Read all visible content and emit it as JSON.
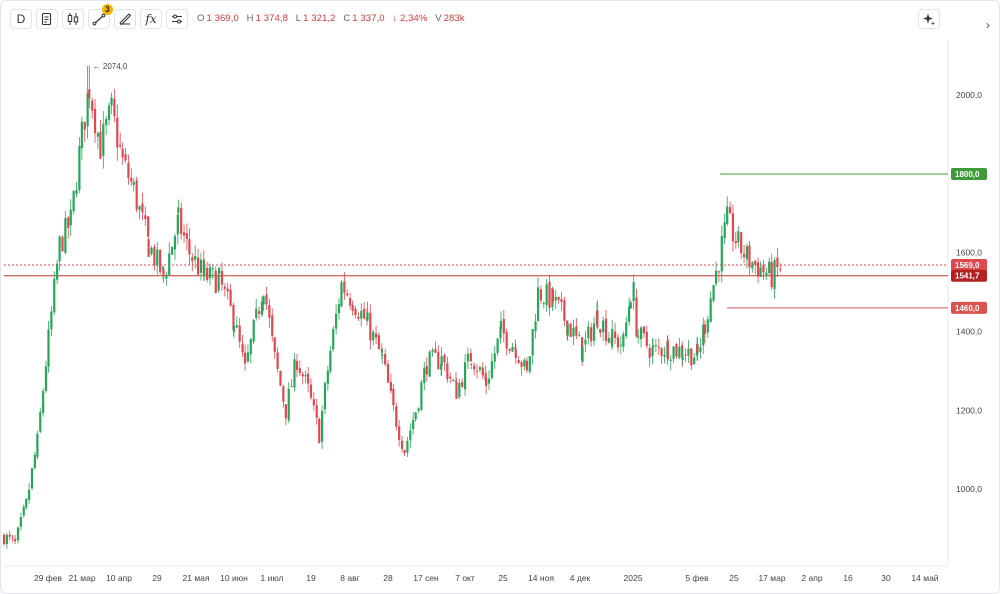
{
  "toolbar": {
    "interval_label": "D",
    "drawings_badge": "3",
    "fx_label": "fx"
  },
  "ohlc": {
    "o_key": "O",
    "o_val": "1 369,0",
    "h_key": "H",
    "h_val": "1 374,8",
    "l_key": "L",
    "l_val": "1 321,2",
    "c_key": "C",
    "c_val": "1 337,0",
    "change": "↓ 2,34%",
    "v_key": "V",
    "v_val": "283k"
  },
  "colors": {
    "up": "#26a65b",
    "down": "#e0484e",
    "green_line": "#3f9b3a",
    "red_line": "#d9534f",
    "current_line": "#c0392b"
  },
  "chart_data": {
    "type": "candlestick",
    "y_ticks": [
      "2000,0",
      "1800,0",
      "1600,0",
      "1400,0",
      "1200,0",
      "1000,0"
    ],
    "y_tick_values": [
      2000,
      1800,
      1600,
      1400,
      1200,
      1000
    ],
    "ylim": [
      820,
      2140
    ],
    "x_ticks": [
      "29 фев",
      "21 мар",
      "10 апр",
      "29",
      "21 мая",
      "10 июн",
      "1 июл",
      "19",
      "8 авг",
      "28",
      "17 сен",
      "7 окт",
      "25",
      "14 ноя",
      "4 дек",
      "2025",
      "5 фев",
      "25",
      "17 мар",
      "2 апр",
      "16",
      "30",
      "14 май"
    ],
    "peak_label": "← 2074,0",
    "peak_value": 2074,
    "levels": [
      {
        "label": "1800,0",
        "value": 1800,
        "kind": "green"
      },
      {
        "label": "1569,0",
        "value": 1569,
        "kind": "current"
      },
      {
        "label": "1541,7",
        "value": 1541.7,
        "kind": "dark"
      },
      {
        "label": "1460,0",
        "value": 1460,
        "kind": "red"
      }
    ],
    "path": [
      {
        "d": 0,
        "p": 880
      },
      {
        "d": 6,
        "p": 860
      },
      {
        "d": 12,
        "p": 960
      },
      {
        "d": 18,
        "p": 1120
      },
      {
        "d": 24,
        "p": 1380
      },
      {
        "d": 30,
        "p": 1620
      },
      {
        "d": 36,
        "p": 1680
      },
      {
        "d": 42,
        "p": 1900
      },
      {
        "d": 46,
        "p": 2020
      },
      {
        "d": 52,
        "p": 1870
      },
      {
        "d": 58,
        "p": 1960
      },
      {
        "d": 64,
        "p": 1830
      },
      {
        "d": 70,
        "p": 1760
      },
      {
        "d": 78,
        "p": 1620
      },
      {
        "d": 86,
        "p": 1540
      },
      {
        "d": 94,
        "p": 1680
      },
      {
        "d": 100,
        "p": 1600
      },
      {
        "d": 108,
        "p": 1540
      },
      {
        "d": 116,
        "p": 1530
      },
      {
        "d": 124,
        "p": 1430
      },
      {
        "d": 130,
        "p": 1300
      },
      {
        "d": 136,
        "p": 1430
      },
      {
        "d": 140,
        "p": 1520
      },
      {
        "d": 146,
        "p": 1330
      },
      {
        "d": 152,
        "p": 1200
      },
      {
        "d": 158,
        "p": 1330
      },
      {
        "d": 164,
        "p": 1250
      },
      {
        "d": 170,
        "p": 1140
      },
      {
        "d": 176,
        "p": 1350
      },
      {
        "d": 182,
        "p": 1520
      },
      {
        "d": 188,
        "p": 1480
      },
      {
        "d": 196,
        "p": 1420
      },
      {
        "d": 204,
        "p": 1330
      },
      {
        "d": 210,
        "p": 1200
      },
      {
        "d": 216,
        "p": 1100
      },
      {
        "d": 222,
        "p": 1200
      },
      {
        "d": 228,
        "p": 1320
      },
      {
        "d": 236,
        "p": 1330
      },
      {
        "d": 244,
        "p": 1250
      },
      {
        "d": 252,
        "p": 1340
      },
      {
        "d": 260,
        "p": 1270
      },
      {
        "d": 268,
        "p": 1400
      },
      {
        "d": 276,
        "p": 1360
      },
      {
        "d": 282,
        "p": 1290
      },
      {
        "d": 288,
        "p": 1500
      },
      {
        "d": 296,
        "p": 1480
      },
      {
        "d": 304,
        "p": 1420
      },
      {
        "d": 312,
        "p": 1350
      },
      {
        "d": 320,
        "p": 1440
      },
      {
        "d": 328,
        "p": 1380
      },
      {
        "d": 334,
        "p": 1370
      },
      {
        "d": 338,
        "p": 1500
      },
      {
        "d": 342,
        "p": 1390
      },
      {
        "d": 350,
        "p": 1350
      },
      {
        "d": 358,
        "p": 1360
      },
      {
        "d": 366,
        "p": 1350
      },
      {
        "d": 374,
        "p": 1340
      },
      {
        "d": 378,
        "p": 1420
      },
      {
        "d": 384,
        "p": 1550
      },
      {
        "d": 390,
        "p": 1680
      },
      {
        "d": 396,
        "p": 1620
      },
      {
        "d": 402,
        "p": 1580
      },
      {
        "d": 408,
        "p": 1560
      },
      {
        "d": 414,
        "p": 1540
      },
      {
        "d": 420,
        "p": 1569
      }
    ],
    "days_total": 508
  }
}
